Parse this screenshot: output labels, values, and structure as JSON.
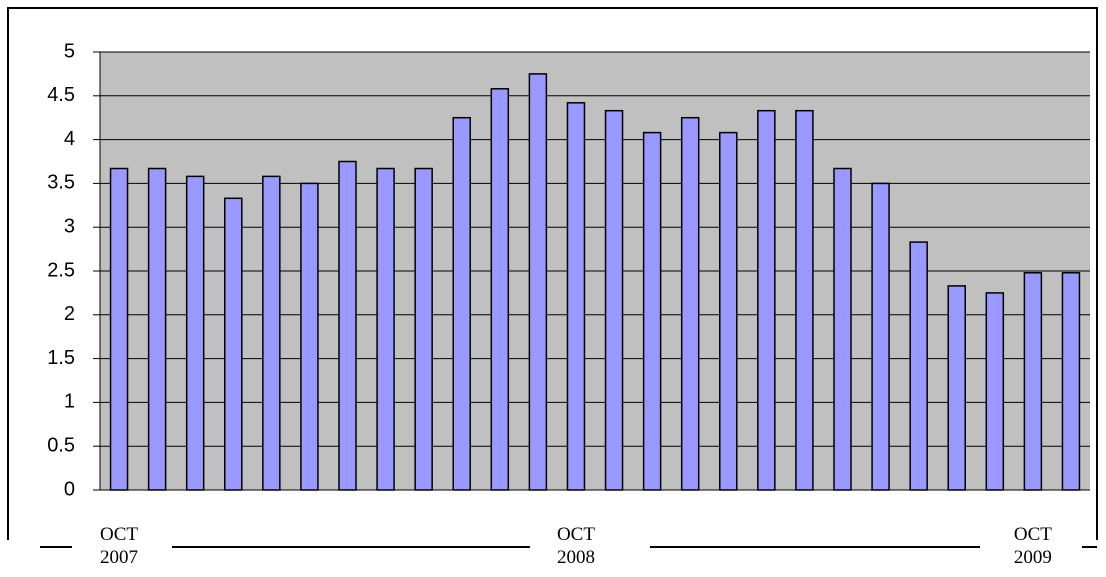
{
  "chart_data": {
    "type": "bar",
    "categories": [
      "OCT 2007",
      null,
      null,
      null,
      null,
      null,
      null,
      null,
      null,
      null,
      null,
      null,
      "OCT 2008",
      null,
      null,
      null,
      null,
      null,
      null,
      null,
      null,
      null,
      null,
      null,
      "OCT 2009",
      null
    ],
    "values": [
      3.67,
      3.67,
      3.58,
      3.33,
      3.58,
      3.5,
      3.75,
      3.67,
      3.67,
      4.25,
      4.58,
      4.75,
      4.42,
      4.33,
      4.08,
      4.25,
      4.08,
      4.33,
      4.33,
      3.67,
      3.5,
      2.83,
      2.33,
      2.25,
      2.48,
      2.48
    ],
    "color": "#9999ff",
    "ylim": [
      0,
      5
    ],
    "yticks": [
      0,
      0.5,
      1,
      1.5,
      2,
      2.5,
      3,
      3.5,
      4,
      4.5,
      5
    ],
    "grid": true
  }
}
